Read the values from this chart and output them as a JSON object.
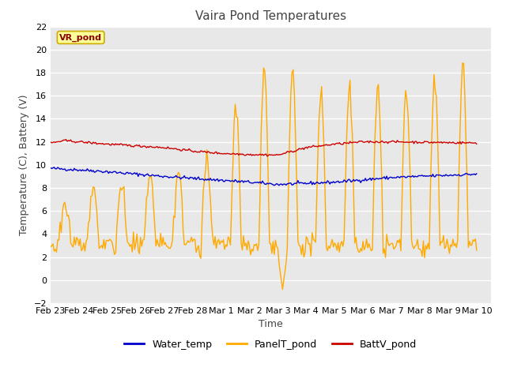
{
  "title": "Vaira Pond Temperatures",
  "xlabel": "Time",
  "ylabel": "Temperature (C), Battery (V)",
  "ylim": [
    -2,
    22
  ],
  "yticks": [
    -2,
    0,
    2,
    4,
    6,
    8,
    10,
    12,
    14,
    16,
    18,
    20,
    22
  ],
  "xtick_labels": [
    "Feb 23",
    "Feb 24",
    "Feb 25",
    "Feb 26",
    "Feb 27",
    "Feb 28",
    "Mar 1",
    "Mar 2",
    "Mar 3",
    "Mar 4",
    "Mar 5",
    "Mar 6",
    "Mar 7",
    "Mar 8",
    "Mar 9",
    "Mar 10"
  ],
  "water_color": "#0000cc",
  "panel_color": "#ffaa00",
  "batt_color": "#cc0000",
  "legend_label_box": "VR_pond",
  "legend_box_fill": "#ffff99",
  "legend_box_edge": "#ccaa00",
  "fig_bg_color": "#ffffff",
  "plot_bg_color": "#e8e8e8",
  "grid_color": "#ffffff",
  "title_fontsize": 11,
  "axis_label_fontsize": 9,
  "tick_fontsize": 8,
  "legend_fontsize": 9,
  "linewidth": 1.0
}
